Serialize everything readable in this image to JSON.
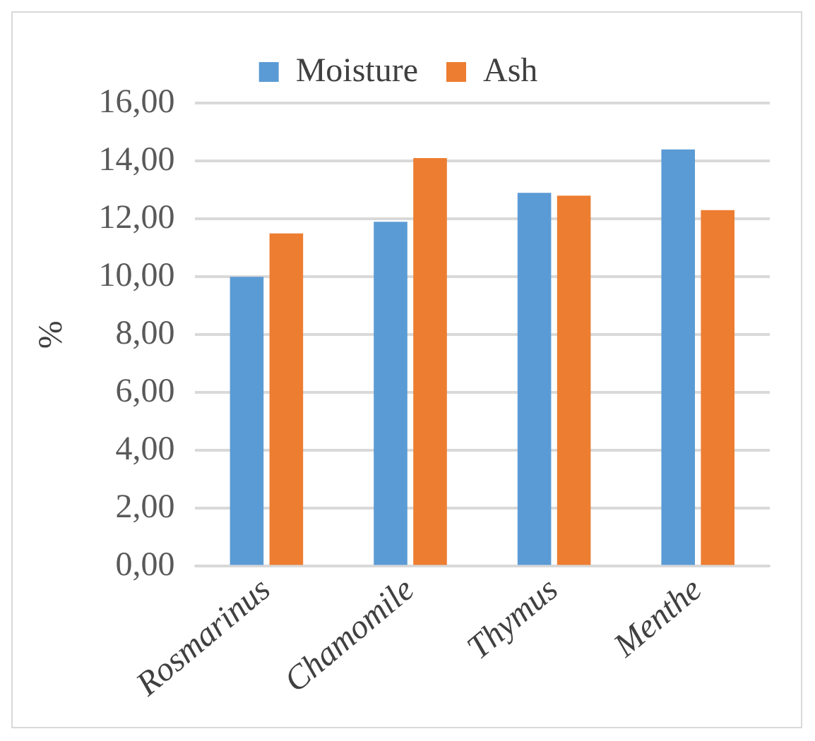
{
  "chart_data": {
    "type": "bar",
    "ylabel": "%",
    "categories": [
      "Rosmarinus",
      "Chamomile",
      "Thymus",
      "Menthe"
    ],
    "series": [
      {
        "name": "Moisture",
        "color": "#5b9bd5",
        "values": [
          10.0,
          11.9,
          12.9,
          14.4
        ]
      },
      {
        "name": "Ash",
        "color": "#ed7d31",
        "values": [
          11.5,
          14.1,
          12.8,
          12.3
        ]
      }
    ],
    "ylim": [
      0,
      16
    ],
    "yticks": [
      {
        "value": 0,
        "label": "0,00"
      },
      {
        "value": 2,
        "label": "2,00"
      },
      {
        "value": 4,
        "label": "4,00"
      },
      {
        "value": 6,
        "label": "6,00"
      },
      {
        "value": 8,
        "label": "8,00"
      },
      {
        "value": 10,
        "label": "10,00"
      },
      {
        "value": 12,
        "label": "12,00"
      },
      {
        "value": 14,
        "label": "14,00"
      },
      {
        "value": 16,
        "label": "16,00"
      }
    ],
    "grid": "y",
    "legend": "top"
  }
}
